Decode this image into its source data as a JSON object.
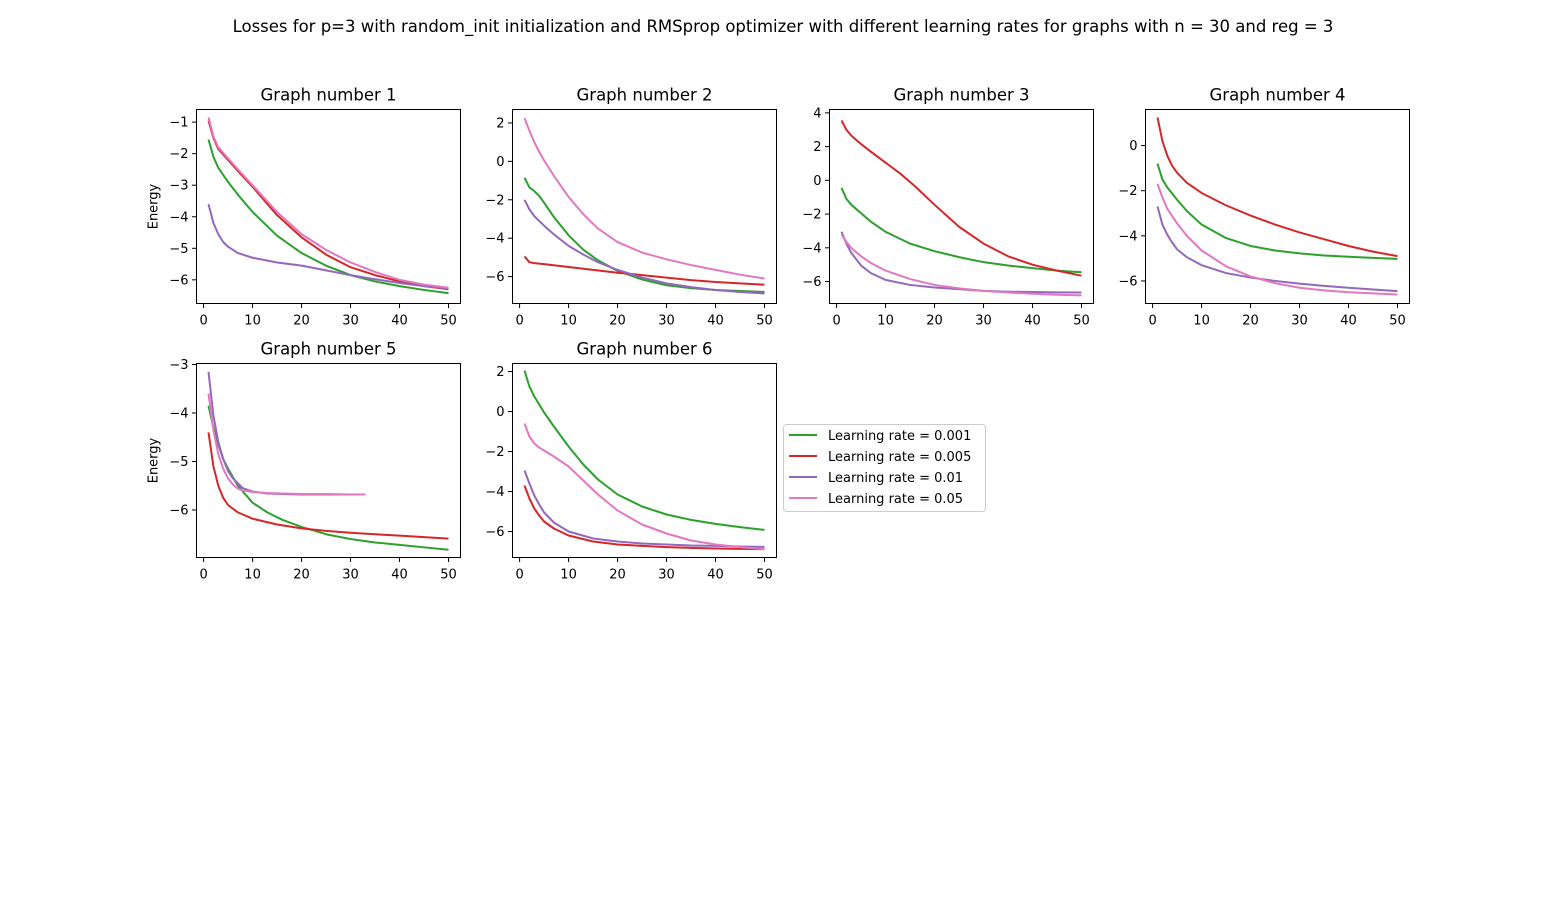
{
  "figure_title": "Losses for p=3 with random_init initialization and RMSprop optimizer with different learning rates for graphs with n = 30 and reg = 3",
  "colors": {
    "lr_0.001": "#2ca02c",
    "lr_0.005": "#d62728",
    "lr_0.01": "#9467bd",
    "lr_0.05": "#e377c2"
  },
  "legend": {
    "placement": "right of Graph number 6",
    "entries": [
      {
        "label": "Learning rate = 0.001",
        "color": "#2ca02c"
      },
      {
        "label": "Learning rate = 0.005",
        "color": "#d62728"
      },
      {
        "label": "Learning rate = 0.01",
        "color": "#9467bd"
      },
      {
        "label": "Learning rate = 0.05",
        "color": "#e377c2"
      }
    ]
  },
  "chart_data": [
    {
      "type": "line",
      "title": "Graph number 1",
      "xlabel": "",
      "ylabel": "Energy",
      "xlim": [
        -1.45,
        52.45
      ],
      "ylim": [
        -6.75,
        -0.6
      ],
      "xticks": [
        0,
        10,
        20,
        30,
        40,
        50
      ],
      "yticks": [
        -6,
        -5,
        -4,
        -3,
        -2,
        -1
      ],
      "grid": false,
      "series": [
        {
          "name": "Learning rate = 0.001",
          "color": "#2ca02c",
          "x": [
            1,
            2,
            3,
            5,
            7,
            10,
            15,
            20,
            25,
            30,
            35,
            40,
            45,
            50
          ],
          "y": [
            -1.55,
            -2.1,
            -2.45,
            -2.9,
            -3.3,
            -3.85,
            -4.6,
            -5.15,
            -5.55,
            -5.85,
            -6.05,
            -6.2,
            -6.32,
            -6.42
          ]
        },
        {
          "name": "Learning rate = 0.005",
          "color": "#d62728",
          "x": [
            1,
            2,
            3,
            5,
            7,
            10,
            15,
            20,
            25,
            30,
            35,
            40,
            45,
            50
          ],
          "y": [
            -0.95,
            -1.5,
            -1.85,
            -2.2,
            -2.55,
            -3.05,
            -3.95,
            -4.65,
            -5.2,
            -5.6,
            -5.85,
            -6.05,
            -6.2,
            -6.3
          ]
        },
        {
          "name": "Learning rate = 0.01",
          "color": "#9467bd",
          "x": [
            1,
            2,
            3,
            4,
            5,
            7,
            10,
            15,
            20,
            25,
            30,
            35,
            40,
            45,
            50
          ],
          "y": [
            -3.6,
            -4.2,
            -4.55,
            -4.8,
            -4.95,
            -5.15,
            -5.3,
            -5.45,
            -5.55,
            -5.7,
            -5.85,
            -5.98,
            -6.1,
            -6.2,
            -6.28
          ]
        },
        {
          "name": "Learning rate = 0.05",
          "color": "#e377c2",
          "x": [
            1,
            2,
            3,
            5,
            7,
            10,
            15,
            20,
            25,
            30,
            35,
            40,
            45,
            50
          ],
          "y": [
            -0.85,
            -1.45,
            -1.8,
            -2.15,
            -2.5,
            -3.0,
            -3.85,
            -4.55,
            -5.05,
            -5.45,
            -5.75,
            -6.0,
            -6.15,
            -6.25
          ]
        }
      ]
    },
    {
      "type": "line",
      "title": "Graph number 2",
      "xlabel": "",
      "ylabel": "",
      "xlim": [
        -1.45,
        52.45
      ],
      "ylim": [
        -7.4,
        2.7
      ],
      "xticks": [
        0,
        10,
        20,
        30,
        40,
        50
      ],
      "yticks": [
        -6,
        -4,
        -2,
        0,
        2
      ],
      "grid": false,
      "series": [
        {
          "name": "Learning rate = 0.001",
          "color": "#2ca02c",
          "x": [
            1,
            2,
            3,
            4,
            5,
            7,
            10,
            13,
            16,
            20,
            25,
            30,
            35,
            40,
            45,
            50
          ],
          "y": [
            -0.85,
            -1.35,
            -1.55,
            -1.8,
            -2.15,
            -2.9,
            -3.85,
            -4.6,
            -5.15,
            -5.7,
            -6.15,
            -6.45,
            -6.6,
            -6.7,
            -6.75,
            -6.8
          ]
        },
        {
          "name": "Learning rate = 0.005",
          "color": "#d62728",
          "x": [
            1,
            2,
            3,
            5,
            10,
            15,
            20,
            25,
            30,
            35,
            40,
            45,
            50
          ],
          "y": [
            -4.95,
            -5.25,
            -5.3,
            -5.35,
            -5.5,
            -5.65,
            -5.8,
            -5.92,
            -6.05,
            -6.18,
            -6.28,
            -6.35,
            -6.42
          ]
        },
        {
          "name": "Learning rate = 0.01",
          "color": "#9467bd",
          "x": [
            1,
            2,
            3,
            5,
            7,
            10,
            13,
            16,
            20,
            25,
            30,
            35,
            40,
            45,
            50
          ],
          "y": [
            -2.0,
            -2.5,
            -2.85,
            -3.35,
            -3.8,
            -4.4,
            -4.85,
            -5.25,
            -5.65,
            -6.05,
            -6.35,
            -6.55,
            -6.7,
            -6.8,
            -6.88
          ]
        },
        {
          "name": "Learning rate = 0.05",
          "color": "#e377c2",
          "x": [
            1,
            2,
            3,
            4,
            5,
            7,
            10,
            13,
            16,
            20,
            25,
            30,
            35,
            40,
            45,
            50
          ],
          "y": [
            2.25,
            1.6,
            1.0,
            0.5,
            0.05,
            -0.75,
            -1.85,
            -2.75,
            -3.5,
            -4.2,
            -4.75,
            -5.1,
            -5.4,
            -5.65,
            -5.9,
            -6.1
          ]
        }
      ]
    },
    {
      "type": "line",
      "title": "Graph number 3",
      "xlabel": "",
      "ylabel": "",
      "xlim": [
        -1.45,
        52.45
      ],
      "ylim": [
        -7.3,
        4.2
      ],
      "xticks": [
        0,
        10,
        20,
        30,
        40,
        50
      ],
      "yticks": [
        -6,
        -4,
        -2,
        0,
        2,
        4
      ],
      "grid": false,
      "series": [
        {
          "name": "Learning rate = 0.001",
          "color": "#2ca02c",
          "x": [
            1,
            2,
            3,
            5,
            7,
            10,
            15,
            20,
            25,
            30,
            35,
            40,
            45,
            50
          ],
          "y": [
            -0.45,
            -1.1,
            -1.45,
            -1.95,
            -2.45,
            -3.05,
            -3.75,
            -4.2,
            -4.55,
            -4.85,
            -5.05,
            -5.2,
            -5.35,
            -5.45
          ]
        },
        {
          "name": "Learning rate = 0.005",
          "color": "#d62728",
          "x": [
            1,
            2,
            3,
            5,
            7,
            10,
            13,
            16,
            20,
            25,
            30,
            35,
            40,
            45,
            50
          ],
          "y": [
            3.55,
            3.0,
            2.65,
            2.15,
            1.7,
            1.05,
            0.4,
            -0.35,
            -1.45,
            -2.75,
            -3.75,
            -4.5,
            -5.0,
            -5.35,
            -5.65
          ]
        },
        {
          "name": "Learning rate = 0.01",
          "color": "#9467bd",
          "x": [
            1,
            2,
            3,
            5,
            7,
            10,
            15,
            20,
            25,
            30,
            35,
            40,
            45,
            50
          ],
          "y": [
            -3.05,
            -3.75,
            -4.3,
            -5.05,
            -5.5,
            -5.9,
            -6.2,
            -6.35,
            -6.45,
            -6.55,
            -6.6,
            -6.62,
            -6.64,
            -6.65
          ]
        },
        {
          "name": "Learning rate = 0.05",
          "color": "#e377c2",
          "x": [
            1,
            2,
            3,
            5,
            7,
            10,
            15,
            20,
            25,
            30,
            35,
            40,
            45,
            50
          ],
          "y": [
            -3.2,
            -3.65,
            -4.0,
            -4.5,
            -4.9,
            -5.35,
            -5.85,
            -6.2,
            -6.4,
            -6.55,
            -6.65,
            -6.72,
            -6.78,
            -6.82
          ]
        }
      ]
    },
    {
      "type": "line",
      "title": "Graph number 4",
      "xlabel": "",
      "ylabel": "",
      "xlim": [
        -1.45,
        52.45
      ],
      "ylim": [
        -7.0,
        1.6
      ],
      "xticks": [
        0,
        10,
        20,
        30,
        40,
        50
      ],
      "yticks": [
        -6,
        -4,
        -2,
        0
      ],
      "grid": false,
      "series": [
        {
          "name": "Learning rate = 0.001",
          "color": "#2ca02c",
          "x": [
            1,
            2,
            3,
            5,
            7,
            10,
            15,
            20,
            25,
            30,
            35,
            40,
            45,
            50
          ],
          "y": [
            -0.8,
            -1.5,
            -1.85,
            -2.4,
            -2.9,
            -3.5,
            -4.1,
            -4.45,
            -4.65,
            -4.78,
            -4.87,
            -4.93,
            -4.98,
            -5.02
          ]
        },
        {
          "name": "Learning rate = 0.005",
          "color": "#d62728",
          "x": [
            1,
            2,
            3,
            4,
            5,
            7,
            10,
            15,
            20,
            25,
            30,
            35,
            40,
            45,
            50
          ],
          "y": [
            1.25,
            0.2,
            -0.45,
            -0.9,
            -1.2,
            -1.65,
            -2.1,
            -2.65,
            -3.1,
            -3.5,
            -3.85,
            -4.15,
            -4.45,
            -4.7,
            -4.9
          ]
        },
        {
          "name": "Learning rate = 0.01",
          "color": "#9467bd",
          "x": [
            1,
            2,
            3,
            4,
            5,
            7,
            10,
            15,
            20,
            25,
            30,
            35,
            40,
            45,
            50
          ],
          "y": [
            -2.7,
            -3.5,
            -3.95,
            -4.3,
            -4.6,
            -4.95,
            -5.3,
            -5.65,
            -5.85,
            -6.0,
            -6.12,
            -6.22,
            -6.3,
            -6.38,
            -6.45
          ]
        },
        {
          "name": "Learning rate = 0.05",
          "color": "#e377c2",
          "x": [
            1,
            2,
            3,
            5,
            7,
            10,
            15,
            20,
            25,
            30,
            35,
            40,
            45,
            50
          ],
          "y": [
            -1.7,
            -2.3,
            -2.8,
            -3.45,
            -4.0,
            -4.65,
            -5.35,
            -5.8,
            -6.1,
            -6.3,
            -6.42,
            -6.5,
            -6.55,
            -6.6
          ]
        }
      ]
    },
    {
      "type": "line",
      "title": "Graph number 5",
      "xlabel": "",
      "ylabel": "Energy",
      "xlim": [
        -1.45,
        52.45
      ],
      "ylim": [
        -6.98,
        -2.98
      ],
      "xticks": [
        0,
        10,
        20,
        30,
        40,
        50
      ],
      "yticks": [
        -6,
        -5,
        -4,
        -3
      ],
      "grid": false,
      "series": [
        {
          "name": "Learning rate = 0.001",
          "color": "#2ca02c",
          "x": [
            1,
            2,
            3,
            4,
            5,
            7,
            10,
            13,
            16,
            20,
            25,
            30,
            35,
            40,
            45,
            50
          ],
          "y": [
            -3.85,
            -4.3,
            -4.65,
            -4.95,
            -5.15,
            -5.5,
            -5.85,
            -6.05,
            -6.2,
            -6.35,
            -6.5,
            -6.6,
            -6.67,
            -6.72,
            -6.77,
            -6.82
          ]
        },
        {
          "name": "Learning rate = 0.005",
          "color": "#d62728",
          "x": [
            1,
            2,
            3,
            4,
            5,
            7,
            10,
            15,
            20,
            25,
            30,
            35,
            40,
            45,
            50
          ],
          "y": [
            -4.4,
            -5.1,
            -5.5,
            -5.75,
            -5.9,
            -6.05,
            -6.18,
            -6.3,
            -6.38,
            -6.43,
            -6.47,
            -6.5,
            -6.53,
            -6.56,
            -6.59
          ]
        },
        {
          "name": "Learning rate = 0.01",
          "color": "#9467bd",
          "x": [
            1,
            2,
            3,
            4,
            5,
            6,
            7,
            8,
            10,
            13,
            16,
            20,
            25,
            30,
            33
          ],
          "y": [
            -3.15,
            -4.05,
            -4.6,
            -4.95,
            -5.2,
            -5.35,
            -5.45,
            -5.55,
            -5.62,
            -5.66,
            -5.67,
            -5.68,
            -5.68,
            -5.68,
            -5.68
          ]
        },
        {
          "name": "Learning rate = 0.05",
          "color": "#e377c2",
          "x": [
            1,
            2,
            3,
            4,
            5,
            6,
            7,
            8,
            10,
            13,
            16,
            20,
            25,
            30,
            33
          ],
          "y": [
            -3.6,
            -4.35,
            -4.85,
            -5.15,
            -5.35,
            -5.48,
            -5.56,
            -5.6,
            -5.63,
            -5.65,
            -5.66,
            -5.67,
            -5.67,
            -5.68,
            -5.68
          ]
        }
      ]
    },
    {
      "type": "line",
      "title": "Graph number 6",
      "xlabel": "",
      "ylabel": "",
      "xlim": [
        -1.45,
        52.45
      ],
      "ylim": [
        -7.3,
        2.4
      ],
      "xticks": [
        0,
        10,
        20,
        30,
        40,
        50
      ],
      "yticks": [
        -6,
        -4,
        -2,
        0,
        2
      ],
      "grid": false,
      "series": [
        {
          "name": "Learning rate = 0.001",
          "color": "#2ca02c",
          "x": [
            1,
            2,
            3,
            4,
            5,
            7,
            10,
            13,
            16,
            20,
            25,
            30,
            35,
            40,
            45,
            50
          ],
          "y": [
            2.05,
            1.25,
            0.75,
            0.35,
            -0.05,
            -0.75,
            -1.75,
            -2.65,
            -3.4,
            -4.15,
            -4.75,
            -5.15,
            -5.42,
            -5.62,
            -5.78,
            -5.92
          ]
        },
        {
          "name": "Learning rate = 0.005",
          "color": "#d62728",
          "x": [
            1,
            2,
            3,
            4,
            5,
            7,
            10,
            15,
            20,
            25,
            30,
            35,
            40,
            45,
            50
          ],
          "y": [
            -3.7,
            -4.35,
            -4.85,
            -5.2,
            -5.5,
            -5.85,
            -6.2,
            -6.5,
            -6.65,
            -6.72,
            -6.78,
            -6.82,
            -6.85,
            -6.87,
            -6.88
          ]
        },
        {
          "name": "Learning rate = 0.01",
          "color": "#9467bd",
          "x": [
            1,
            2,
            3,
            4,
            5,
            7,
            10,
            15,
            20,
            25,
            30,
            35,
            40,
            45,
            50
          ],
          "y": [
            -2.95,
            -3.6,
            -4.2,
            -4.65,
            -5.05,
            -5.55,
            -6.0,
            -6.35,
            -6.5,
            -6.6,
            -6.65,
            -6.7,
            -6.72,
            -6.75,
            -6.77
          ]
        },
        {
          "name": "Learning rate = 0.05",
          "color": "#e377c2",
          "x": [
            1,
            2,
            3,
            4,
            5,
            7,
            10,
            13,
            16,
            20,
            25,
            30,
            35,
            40,
            45,
            50
          ],
          "y": [
            -0.6,
            -1.25,
            -1.6,
            -1.8,
            -1.95,
            -2.25,
            -2.75,
            -3.45,
            -4.15,
            -4.95,
            -5.65,
            -6.1,
            -6.45,
            -6.65,
            -6.78,
            -6.88
          ]
        }
      ]
    }
  ]
}
